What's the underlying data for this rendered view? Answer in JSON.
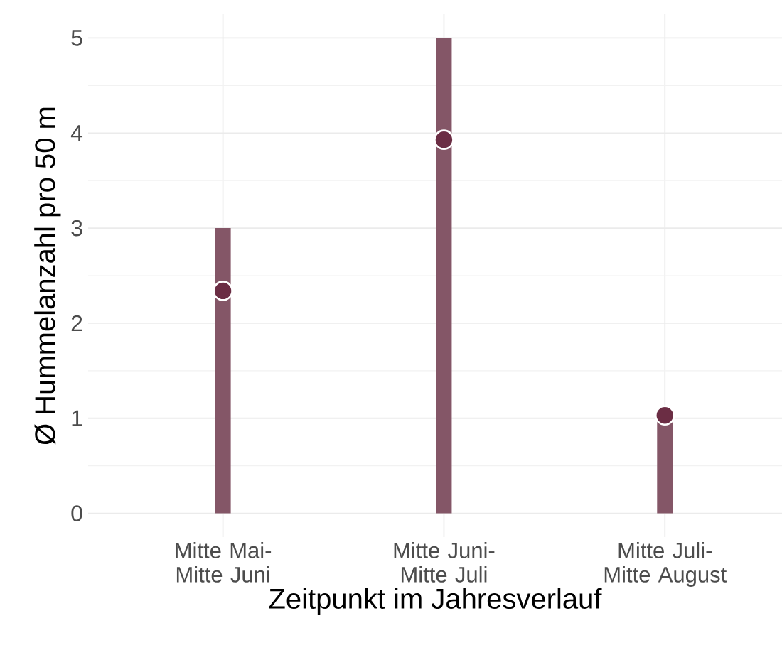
{
  "chart_data": {
    "type": "bar",
    "xlabel": "Zeitpunkt im Jahresverlauf",
    "ylabel": "Ø Hummelanzahl pro 50 m",
    "categories": [
      "Mitte Mai- Mitte Juni",
      "Mitte Juni- Mitte Juli",
      "Mitte Juli- Mitte August"
    ],
    "series": [
      {
        "color": "#845667",
        "values": [
          3,
          5,
          1
        ]
      },
      {
        "type": "scatter",
        "color": "#6b2d44",
        "values": [
          2.34,
          3.93,
          1.03
        ]
      }
    ],
    "ylim": [
      -0.25,
      5.25
    ],
    "yticks": [
      0,
      1,
      2,
      3,
      4,
      5
    ],
    "grid": true,
    "marker": "circle"
  }
}
